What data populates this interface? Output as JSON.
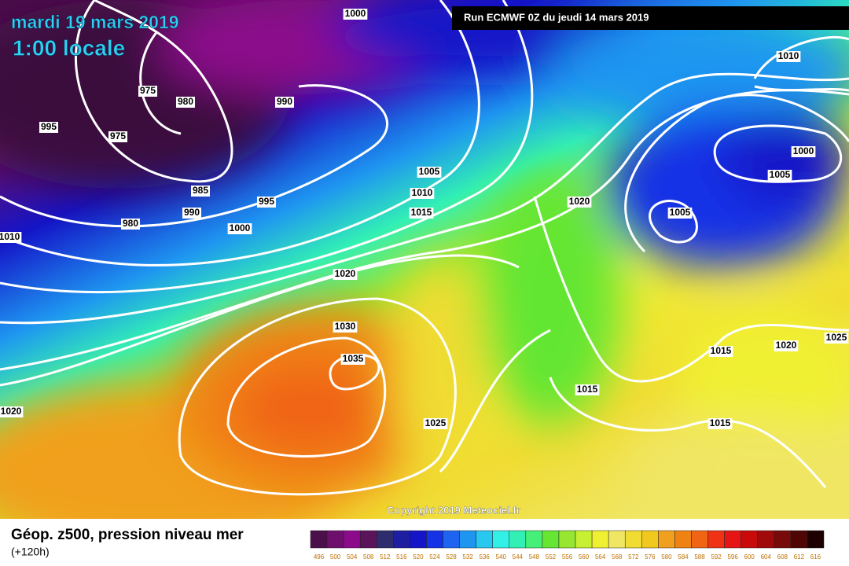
{
  "header": {
    "date": "mardi 19 mars 2019",
    "time": "1:00 locale",
    "run": "Run ECMWF 0Z du jeudi 14 mars 2019"
  },
  "copyright": "Copyright 2019 Meteociel.fr",
  "legend": {
    "title": "Géop. z500, pression niveau mer",
    "subtitle": "(+120h)",
    "ticks": [
      496,
      500,
      504,
      508,
      512,
      516,
      520,
      524,
      528,
      532,
      536,
      540,
      544,
      548,
      552,
      556,
      560,
      564,
      568,
      572,
      576,
      580,
      584,
      588,
      592,
      596,
      600,
      604,
      608,
      612,
      616
    ],
    "colors": [
      "#4b0f4b",
      "#6e0f6e",
      "#8c0a8c",
      "#5a145a",
      "#2d2d6e",
      "#1e1ea0",
      "#1414c8",
      "#1432e6",
      "#1e64f0",
      "#1e96f0",
      "#28c8f0",
      "#32f0e6",
      "#32f0b4",
      "#46f078",
      "#64e632",
      "#96e632",
      "#c8f032",
      "#f0f032",
      "#f0e664",
      "#f0dc32",
      "#f0c81e",
      "#f0a01e",
      "#f08214",
      "#f06414",
      "#f03214",
      "#e61414",
      "#c80a0a",
      "#a00a0a",
      "#780a0a",
      "#500505",
      "#1e0000"
    ]
  },
  "isobar_labels": [
    1000,
    975,
    980,
    990,
    995,
    975,
    985,
    990,
    995,
    980,
    1000,
    1005,
    1010,
    1015,
    1020,
    1010,
    1000,
    1005,
    1005,
    1020,
    1030,
    1035,
    1025,
    1015,
    1015,
    1015,
    1020,
    1025,
    1020,
    1010
  ]
}
